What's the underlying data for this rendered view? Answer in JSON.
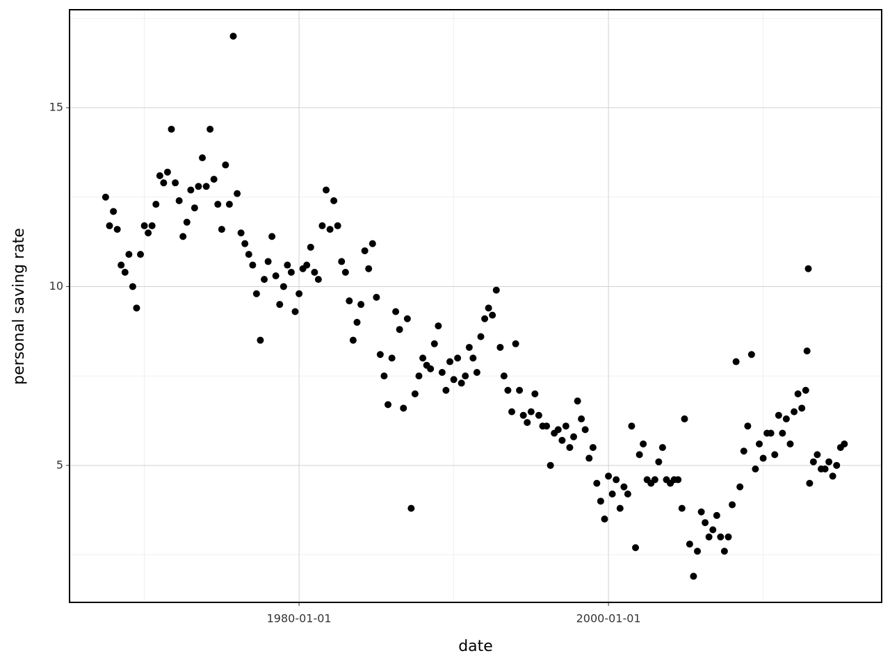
{
  "chart_data": {
    "type": "scatter",
    "x_label": "date",
    "y_label": "personal saving rate",
    "color": "#000000",
    "grid": true,
    "xlim": [
      "1965-03-01",
      "2017-08-29"
    ],
    "ylim": [
      1.17,
      17.74
    ],
    "xticks": [
      "1980-01-01",
      "2000-01-01"
    ],
    "x_minor_ticks": [
      "1970-01-01",
      "1990-01-01",
      "2010-01-01"
    ],
    "yticks": [
      5,
      10,
      15
    ],
    "y_minor_ticks": [
      2.5,
      7.5,
      12.5,
      17.5
    ],
    "x": [
      "1967-07-01",
      "1967-10-01",
      "1968-01-01",
      "1968-04-01",
      "1968-07-01",
      "1968-10-01",
      "1969-01-01",
      "1969-04-01",
      "1969-07-01",
      "1969-10-01",
      "1970-01-01",
      "1970-04-01",
      "1970-07-01",
      "1970-10-01",
      "1971-01-01",
      "1971-04-01",
      "1971-07-01",
      "1971-10-01",
      "1972-01-01",
      "1972-04-01",
      "1972-07-01",
      "1972-10-01",
      "1973-01-01",
      "1973-04-01",
      "1973-07-01",
      "1973-10-01",
      "1974-01-01",
      "1974-04-01",
      "1974-07-01",
      "1974-10-01",
      "1975-01-01",
      "1975-04-01",
      "1975-07-01",
      "1975-10-01",
      "1976-01-01",
      "1976-04-01",
      "1976-07-01",
      "1976-10-01",
      "1977-01-01",
      "1977-04-01",
      "1977-07-01",
      "1977-10-01",
      "1978-01-01",
      "1978-04-01",
      "1978-07-01",
      "1978-10-01",
      "1979-01-01",
      "1979-04-01",
      "1979-07-01",
      "1979-10-01",
      "1980-01-01",
      "1980-04-01",
      "1980-07-01",
      "1980-10-01",
      "1981-01-01",
      "1981-04-01",
      "1981-07-01",
      "1981-10-01",
      "1982-01-01",
      "1982-04-01",
      "1982-07-01",
      "1982-10-01",
      "1983-01-01",
      "1983-04-01",
      "1983-07-01",
      "1983-10-01",
      "1984-01-01",
      "1984-04-01",
      "1984-07-01",
      "1984-10-01",
      "1985-01-01",
      "1985-04-01",
      "1985-07-01",
      "1985-10-01",
      "1986-01-01",
      "1986-04-01",
      "1986-07-01",
      "1986-10-01",
      "1987-01-01",
      "1987-04-01",
      "1987-07-01",
      "1987-10-01",
      "1988-01-01",
      "1988-04-01",
      "1988-07-01",
      "1988-10-01",
      "1989-01-01",
      "1989-04-01",
      "1989-07-01",
      "1989-10-01",
      "1990-01-01",
      "1990-04-01",
      "1990-07-01",
      "1990-10-01",
      "1991-01-01",
      "1991-04-01",
      "1991-07-01",
      "1991-10-01",
      "1992-01-01",
      "1992-04-01",
      "1992-07-01",
      "1992-10-01",
      "1993-01-01",
      "1993-04-01",
      "1993-07-01",
      "1993-10-01",
      "1994-01-01",
      "1994-04-01",
      "1994-07-01",
      "1994-10-01",
      "1995-01-01",
      "1995-04-01",
      "1995-07-01",
      "1995-10-01",
      "1996-01-01",
      "1996-04-01",
      "1996-07-01",
      "1996-10-01",
      "1997-01-01",
      "1997-04-01",
      "1997-07-01",
      "1997-10-01",
      "1998-01-01",
      "1998-04-01",
      "1998-07-01",
      "1998-10-01",
      "1999-01-01",
      "1999-04-01",
      "1999-07-01",
      "1999-10-01",
      "2000-01-01",
      "2000-04-01",
      "2000-07-01",
      "2000-10-01",
      "2001-01-01",
      "2001-04-01",
      "2001-07-01",
      "2001-10-01",
      "2002-01-01",
      "2002-04-01",
      "2002-07-01",
      "2002-10-01",
      "2003-01-01",
      "2003-04-01",
      "2003-07-01",
      "2003-10-01",
      "2004-01-01",
      "2004-04-01",
      "2004-07-01",
      "2004-10-01",
      "2004-12-01",
      "2005-04-01",
      "2005-07-01",
      "2005-10-01",
      "2006-01-01",
      "2006-04-01",
      "2006-07-01",
      "2006-10-01",
      "2007-01-01",
      "2007-04-01",
      "2007-07-01",
      "2007-10-01",
      "2008-01-01",
      "2008-04-01",
      "2008-07-01",
      "2008-10-01",
      "2009-01-01",
      "2009-04-01",
      "2009-07-01",
      "2009-10-01",
      "2010-01-01",
      "2010-04-01",
      "2010-07-01",
      "2010-10-01",
      "2011-01-01",
      "2011-04-01",
      "2011-07-01",
      "2011-10-01",
      "2012-01-01",
      "2012-04-01",
      "2012-07-01",
      "2012-10-01",
      "2012-11-01",
      "2012-12-01",
      "2013-01-01",
      "2013-04-01",
      "2013-07-01",
      "2013-10-01",
      "2014-01-01",
      "2014-04-01",
      "2014-07-01",
      "2014-10-01",
      "2015-01-01",
      "2015-04-01"
    ],
    "values": [
      12.5,
      11.7,
      12.1,
      11.6,
      10.6,
      10.4,
      10.9,
      10.0,
      9.4,
      10.9,
      11.7,
      11.5,
      11.7,
      12.3,
      13.1,
      12.9,
      13.2,
      14.4,
      12.9,
      12.4,
      11.4,
      11.8,
      12.7,
      12.2,
      12.8,
      13.6,
      12.8,
      14.4,
      13.0,
      12.3,
      11.6,
      13.4,
      12.3,
      17.0,
      12.6,
      11.5,
      11.2,
      10.9,
      10.6,
      9.8,
      8.5,
      10.2,
      10.7,
      11.4,
      10.3,
      9.5,
      10.0,
      10.6,
      10.4,
      9.3,
      9.8,
      10.5,
      10.6,
      11.1,
      10.4,
      10.2,
      11.7,
      12.7,
      11.6,
      12.4,
      11.7,
      10.7,
      10.4,
      9.6,
      8.5,
      9.0,
      9.5,
      11.0,
      10.5,
      11.2,
      9.7,
      8.1,
      7.5,
      6.7,
      8.0,
      9.3,
      8.8,
      6.6,
      9.1,
      3.8,
      7.0,
      7.5,
      8.0,
      7.8,
      7.7,
      8.4,
      8.9,
      7.6,
      7.1,
      7.9,
      7.4,
      8.0,
      7.3,
      7.5,
      8.3,
      8.0,
      7.6,
      8.6,
      9.1,
      9.4,
      9.2,
      9.9,
      8.3,
      7.5,
      7.1,
      6.5,
      8.4,
      7.1,
      6.4,
      6.2,
      6.5,
      7.0,
      6.4,
      6.1,
      6.1,
      5.0,
      5.9,
      6.0,
      5.7,
      6.1,
      5.5,
      5.8,
      6.8,
      6.3,
      6.0,
      5.2,
      5.5,
      4.5,
      4.0,
      3.5,
      4.7,
      4.2,
      4.6,
      3.8,
      4.4,
      4.2,
      6.1,
      2.7,
      5.3,
      5.6,
      4.6,
      4.5,
      4.6,
      5.1,
      5.5,
      4.6,
      4.5,
      4.6,
      4.6,
      3.8,
      6.3,
      2.8,
      1.9,
      2.6,
      3.7,
      3.4,
      3.0,
      3.2,
      3.6,
      3.0,
      2.6,
      3.0,
      3.9,
      7.9,
      4.4,
      5.4,
      6.1,
      8.1,
      4.9,
      5.6,
      5.2,
      5.9,
      5.9,
      5.3,
      6.4,
      5.9,
      6.3,
      5.6,
      6.5,
      7.0,
      6.6,
      7.1,
      8.2,
      10.5,
      4.5,
      5.1,
      5.3,
      4.9,
      4.9,
      5.1,
      4.7,
      5.0,
      5.5,
      5.6
    ]
  }
}
